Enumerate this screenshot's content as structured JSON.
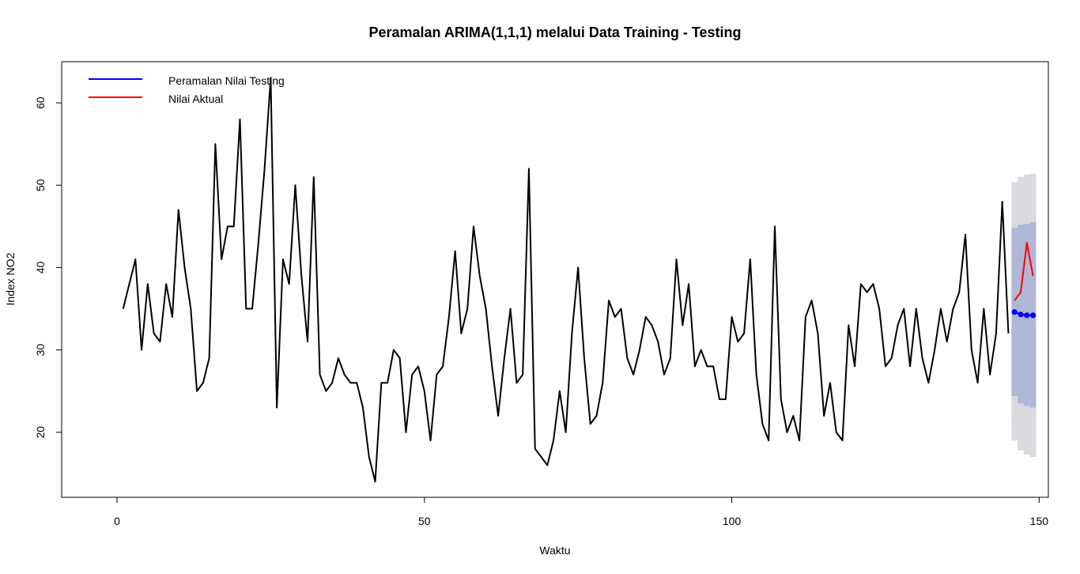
{
  "chart_data": {
    "type": "line",
    "title": "Peramalan ARIMA(1,1,1) melalui Data Training - Testing",
    "xlabel": "Waktu",
    "ylabel": "Index NO2",
    "xlim": [
      -9,
      151.5
    ],
    "ylim": [
      12.1,
      65
    ],
    "xticks": [
      0,
      50,
      100,
      150
    ],
    "yticks": [
      20,
      30,
      40,
      50,
      60
    ],
    "grid": false,
    "legend": {
      "position": "top-left",
      "entries": [
        {
          "label": "Peramalan Nilai Testing",
          "color": "#0000ff"
        },
        {
          "label": "Nilai Aktual",
          "color": "#ff0000"
        }
      ]
    },
    "training": {
      "x_start": 1,
      "color": "#000000",
      "values": [
        35,
        38,
        41,
        30,
        38,
        32,
        31,
        38,
        34,
        47,
        40,
        35,
        25,
        26,
        29,
        55,
        41,
        45,
        45,
        58,
        35,
        35,
        43,
        52,
        63,
        23,
        41,
        38,
        50,
        39,
        31,
        51,
        27,
        25,
        26,
        29,
        27,
        26,
        26,
        23,
        17,
        14,
        26,
        26,
        30,
        29,
        20,
        27,
        28,
        25,
        19,
        27,
        28,
        34,
        42,
        32,
        35,
        45,
        39,
        35,
        28,
        22,
        29,
        35,
        26,
        27,
        52,
        18,
        17,
        16,
        19,
        25,
        20,
        32,
        40,
        29,
        21,
        22,
        26,
        36,
        34,
        35,
        29,
        27,
        30,
        34,
        33,
        31,
        27,
        29,
        41,
        33,
        38,
        28,
        30,
        28,
        28,
        24,
        24,
        34,
        31,
        32,
        41,
        27,
        21,
        19,
        45,
        24,
        20,
        22,
        19,
        34,
        36,
        32,
        22,
        26,
        20,
        19,
        33,
        28,
        38,
        37,
        38,
        35,
        28,
        29,
        33,
        35,
        28,
        35,
        29,
        26,
        30,
        35,
        31,
        35,
        37,
        44,
        30,
        26,
        35,
        27,
        32,
        48,
        32
      ]
    },
    "testing": {
      "x": [
        146,
        147,
        148,
        149
      ],
      "actual": [
        36,
        37,
        43,
        39
      ],
      "actual_color": "#ff0000",
      "forecast": [
        34.6,
        34.3,
        34.2,
        34.2
      ],
      "forecast_color": "#0000ff",
      "pi80_lower": [
        24.4,
        23.5,
        23.2,
        23.0
      ],
      "pi80_upper": [
        44.8,
        45.2,
        45.3,
        45.5
      ],
      "pi80_color": "#b0b6d6",
      "pi95_lower": [
        19.0,
        17.8,
        17.3,
        17.0
      ],
      "pi95_upper": [
        50.4,
        51.0,
        51.3,
        51.4
      ],
      "pi95_color": "#d9d9de"
    }
  }
}
